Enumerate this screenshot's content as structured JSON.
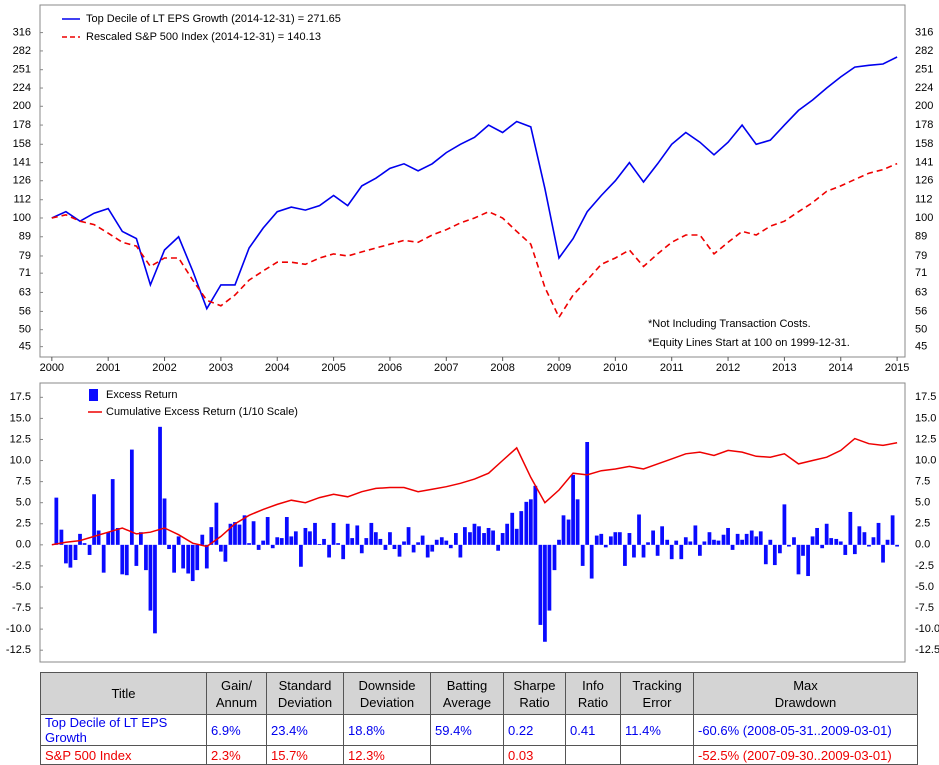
{
  "chart_data": [
    {
      "type": "line",
      "yscale": "log",
      "grid": false,
      "x": [
        2000,
        2000.25,
        2000.5,
        2000.75,
        2001,
        2001.25,
        2001.5,
        2001.75,
        2002,
        2002.25,
        2002.5,
        2002.75,
        2003,
        2003.25,
        2003.5,
        2003.75,
        2004,
        2004.25,
        2004.5,
        2004.75,
        2005,
        2005.25,
        2005.5,
        2005.75,
        2006,
        2006.25,
        2006.5,
        2006.75,
        2007,
        2007.25,
        2007.5,
        2007.75,
        2008,
        2008.25,
        2008.5,
        2008.75,
        2009,
        2009.25,
        2009.5,
        2009.75,
        2010,
        2010.25,
        2010.5,
        2010.75,
        2011,
        2011.25,
        2011.5,
        2011.75,
        2012,
        2012.25,
        2012.5,
        2012.75,
        2013,
        2013.25,
        2013.5,
        2013.75,
        2014,
        2014.25,
        2014.5,
        2014.75,
        2015
      ],
      "series": [
        {
          "name": "Top Decile of LT EPS Growth (2014-12-31) = 271.65",
          "color": "#0000ee",
          "dashed": false,
          "values": [
            100,
            104,
            98,
            103,
            106,
            92,
            88,
            66,
            82,
            89,
            72,
            57,
            66,
            66,
            83,
            94,
            104,
            107,
            105,
            108,
            115,
            108,
            122,
            128,
            136,
            140,
            134,
            140,
            150,
            158,
            165,
            178,
            170,
            182,
            176,
            120,
            78,
            88,
            104,
            115,
            126,
            141,
            125,
            140,
            158,
            170,
            160,
            148,
            160,
            178,
            158,
            162,
            178,
            195,
            208,
            224,
            240,
            255,
            258,
            260,
            271.65
          ]
        },
        {
          "name": "Rescaled S&P 500 Index (2014-12-31) = 140.13",
          "color": "#ee0000",
          "dashed": true,
          "values": [
            100,
            102,
            98,
            96,
            91,
            86,
            84,
            74,
            78,
            78,
            68,
            60,
            58,
            62,
            68,
            72,
            76,
            76,
            75,
            78,
            80,
            79,
            81,
            83,
            85,
            87,
            86,
            90,
            93,
            97,
            100,
            104,
            100,
            92,
            85,
            65,
            54,
            62,
            68,
            75,
            78,
            82,
            74,
            80,
            86,
            90,
            90,
            80,
            86,
            92,
            90,
            95,
            98,
            104,
            110,
            118,
            122,
            127,
            132,
            135,
            140.13
          ]
        }
      ],
      "xlim": [
        1999.79,
        2015.14
      ],
      "xticks": [
        2000,
        2001,
        2002,
        2003,
        2004,
        2005,
        2006,
        2007,
        2008,
        2009,
        2010,
        2011,
        2012,
        2013,
        2014,
        2015
      ],
      "ylim": [
        42.2,
        375
      ],
      "yticks": [
        45,
        50,
        56,
        63,
        71,
        79,
        89,
        100,
        112,
        126,
        141,
        158,
        178,
        200,
        224,
        251,
        282,
        316
      ],
      "annotations": [
        "*Not Including Transaction Costs.",
        "*Equity Lines Start at 100 on 1999-12-31."
      ]
    },
    {
      "type": "bar",
      "grid": false,
      "x": [
        2000.08,
        2000.17,
        2000.25,
        2000.33,
        2000.42,
        2000.5,
        2000.58,
        2000.67,
        2000.75,
        2000.83,
        2000.92,
        2001,
        2001.08,
        2001.17,
        2001.25,
        2001.33,
        2001.42,
        2001.5,
        2001.58,
        2001.67,
        2001.75,
        2001.83,
        2001.92,
        2002,
        2002.08,
        2002.17,
        2002.25,
        2002.33,
        2002.42,
        2002.5,
        2002.58,
        2002.67,
        2002.75,
        2002.83,
        2002.92,
        2003,
        2003.08,
        2003.17,
        2003.25,
        2003.33,
        2003.42,
        2003.5,
        2003.58,
        2003.67,
        2003.75,
        2003.83,
        2003.92,
        2004,
        2004.08,
        2004.17,
        2004.25,
        2004.33,
        2004.42,
        2004.5,
        2004.58,
        2004.67,
        2004.75,
        2004.83,
        2004.92,
        2005,
        2005.08,
        2005.17,
        2005.25,
        2005.33,
        2005.42,
        2005.5,
        2005.58,
        2005.67,
        2005.75,
        2005.83,
        2005.92,
        2006,
        2006.08,
        2006.17,
        2006.25,
        2006.33,
        2006.42,
        2006.5,
        2006.58,
        2006.67,
        2006.75,
        2006.83,
        2006.92,
        2007,
        2007.08,
        2007.17,
        2007.25,
        2007.33,
        2007.42,
        2007.5,
        2007.58,
        2007.67,
        2007.75,
        2007.83,
        2007.92,
        2008,
        2008.08,
        2008.17,
        2008.25,
        2008.33,
        2008.42,
        2008.5,
        2008.58,
        2008.67,
        2008.75,
        2008.83,
        2008.92,
        2009,
        2009.08,
        2009.17,
        2009.25,
        2009.33,
        2009.42,
        2009.5,
        2009.58,
        2009.67,
        2009.75,
        2009.83,
        2009.92,
        2010,
        2010.08,
        2010.17,
        2010.25,
        2010.33,
        2010.42,
        2010.5,
        2010.58,
        2010.67,
        2010.75,
        2010.83,
        2010.92,
        2011,
        2011.08,
        2011.17,
        2011.25,
        2011.33,
        2011.42,
        2011.5,
        2011.58,
        2011.67,
        2011.75,
        2011.83,
        2011.92,
        2012,
        2012.08,
        2012.17,
        2012.25,
        2012.33,
        2012.42,
        2012.5,
        2012.58,
        2012.67,
        2012.75,
        2012.83,
        2012.92,
        2013,
        2013.08,
        2013.17,
        2013.25,
        2013.33,
        2013.42,
        2013.5,
        2013.58,
        2013.67,
        2013.75,
        2013.83,
        2013.92,
        2014,
        2014.08,
        2014.17,
        2014.25,
        2014.33,
        2014.42,
        2014.5,
        2014.58,
        2014.67,
        2014.75,
        2014.83,
        2014.92,
        2015
      ],
      "series": [
        {
          "name": "Excess Return",
          "type": "bar",
          "color": "#0a0aff",
          "values": [
            5.6,
            1.8,
            -2.2,
            -2.7,
            -1.8,
            1.3,
            0.2,
            -1.2,
            6.0,
            1.7,
            -3.3,
            1.5,
            7.8,
            2.0,
            -3.5,
            -3.6,
            11.3,
            -2.5,
            1.5,
            -3.0,
            -7.8,
            -10.5,
            14.0,
            5.5,
            -0.5,
            -3.3,
            1.0,
            -2.8,
            -3.4,
            -4.3,
            -3.0,
            1.2,
            -2.8,
            2.1,
            5.0,
            -0.8,
            -2.0,
            2.5,
            2.7,
            2.4,
            3.5,
            0.2,
            2.8,
            -0.6,
            0.5,
            3.3,
            -0.4,
            0.9,
            0.8,
            3.3,
            1.0,
            1.6,
            -2.6,
            2.0,
            1.6,
            2.6,
            0.1,
            0.7,
            -1.5,
            2.6,
            0.2,
            -1.7,
            2.5,
            0.8,
            2.3,
            -1.0,
            0.8,
            2.6,
            1.5,
            0.7,
            -0.6,
            1.5,
            -0.5,
            -1.4,
            0.4,
            2.1,
            -0.9,
            0.3,
            1.1,
            -1.5,
            -0.8,
            0.6,
            0.9,
            0.5,
            -0.4,
            1.4,
            -1.5,
            2.1,
            1.5,
            2.5,
            2.2,
            1.4,
            2.0,
            1.7,
            -0.7,
            1.4,
            2.5,
            3.8,
            1.9,
            4.0,
            5.1,
            5.4,
            7.0,
            -9.5,
            -11.5,
            -7.8,
            -3.0,
            0.6,
            3.5,
            3.0,
            8.3,
            5.4,
            -2.5,
            12.2,
            -4.0,
            1.1,
            1.3,
            -0.3,
            1.0,
            1.5,
            1.5,
            -2.5,
            1.4,
            -1.5,
            3.6,
            -1.5,
            0.3,
            1.7,
            -1.3,
            2.2,
            0.6,
            -1.7,
            0.5,
            -1.7,
            0.9,
            0.4,
            2.3,
            -1.3,
            0.4,
            1.5,
            0.6,
            0.5,
            1.2,
            2.0,
            -0.6,
            1.3,
            0.6,
            1.3,
            1.7,
            1.0,
            1.6,
            -2.3,
            0.6,
            -2.4,
            -1.0,
            4.8,
            -0.2,
            0.9,
            -3.5,
            -1.3,
            -3.7,
            1.0,
            2.0,
            -0.4,
            2.5,
            0.8,
            0.7,
            0.4,
            -1.2,
            3.9,
            -1.1,
            2.2,
            1.5,
            -0.2,
            0.9,
            2.6,
            -2.1,
            0.6,
            3.5,
            -0.2
          ]
        },
        {
          "name": "Cumulative Excess Return (1/10 Scale)",
          "type": "line",
          "color": "#ee0000",
          "x": [
            2000,
            2000.25,
            2000.5,
            2000.75,
            2001,
            2001.25,
            2001.5,
            2001.75,
            2002,
            2002.25,
            2002.5,
            2002.75,
            2003,
            2003.25,
            2003.5,
            2003.75,
            2004,
            2004.25,
            2004.5,
            2004.75,
            2005,
            2005.25,
            2005.5,
            2005.75,
            2006,
            2006.25,
            2006.5,
            2006.75,
            2007,
            2007.25,
            2007.5,
            2007.75,
            2008,
            2008.25,
            2008.5,
            2008.75,
            2009,
            2009.25,
            2009.5,
            2009.75,
            2010,
            2010.25,
            2010.5,
            2010.75,
            2011,
            2011.25,
            2011.5,
            2011.75,
            2012,
            2012.25,
            2012.5,
            2012.75,
            2013,
            2013.25,
            2013.5,
            2013.75,
            2014,
            2014.25,
            2014.5,
            2014.75,
            2015
          ],
          "values": [
            0,
            0.3,
            0.5,
            1.0,
            1.5,
            2.0,
            1.3,
            1.5,
            2.0,
            1.2,
            0.2,
            -0.2,
            1.0,
            2.5,
            3.5,
            4.2,
            4.8,
            5.3,
            5.0,
            5.6,
            6.0,
            5.7,
            6.3,
            6.7,
            6.8,
            6.8,
            6.3,
            6.6,
            6.9,
            7.3,
            7.8,
            8.5,
            10.0,
            11.5,
            8.0,
            5.0,
            6.5,
            8.5,
            8.3,
            8.8,
            9.0,
            9.3,
            9.0,
            9.6,
            10.2,
            10.8,
            11.0,
            10.6,
            11.2,
            11.0,
            10.5,
            10.4,
            10.8,
            9.6,
            10.0,
            10.4,
            11.2,
            12.6,
            12.0,
            11.8,
            12.1
          ]
        }
      ],
      "xlim": [
        1999.79,
        2015.14
      ],
      "ylim": [
        -13.9,
        19.2
      ],
      "yticks": [
        17.5,
        {
          "value": 15,
          "label": "15.0"
        },
        12.5,
        {
          "value": 10,
          "label": "10.0"
        },
        7.5,
        {
          "value": 5,
          "label": "5.0"
        },
        2.5,
        {
          "value": 0,
          "label": "0.0"
        },
        -2.5,
        {
          "value": -5,
          "label": "-5.0"
        },
        -7.5,
        {
          "value": -10,
          "label": "-10.0"
        },
        -12.5
      ]
    }
  ],
  "table": {
    "header": [
      "Title",
      "Gain/\nAnnum",
      "Standard\nDeviation",
      "Downside\nDeviation",
      "Batting\nAverage",
      "Sharpe\nRatio",
      "Info\nRatio",
      "Tracking\nError",
      "Max\nDrawdown"
    ],
    "rows": [
      {
        "color": "#0000ee",
        "cells": [
          "Top Decile of LT EPS Growth",
          "6.9%",
          "23.4%",
          "18.8%",
          "59.4%",
          "0.22",
          "0.41",
          "11.4%",
          "-60.6% (2008-05-31..2009-03-01)"
        ]
      },
      {
        "color": "#ee0000",
        "cells": [
          "S&P 500 Index",
          "2.3%",
          "15.7%",
          "12.3%",
          null,
          "0.03",
          null,
          null,
          "-52.5% (2007-09-30..2009-03-01)"
        ]
      }
    ]
  }
}
